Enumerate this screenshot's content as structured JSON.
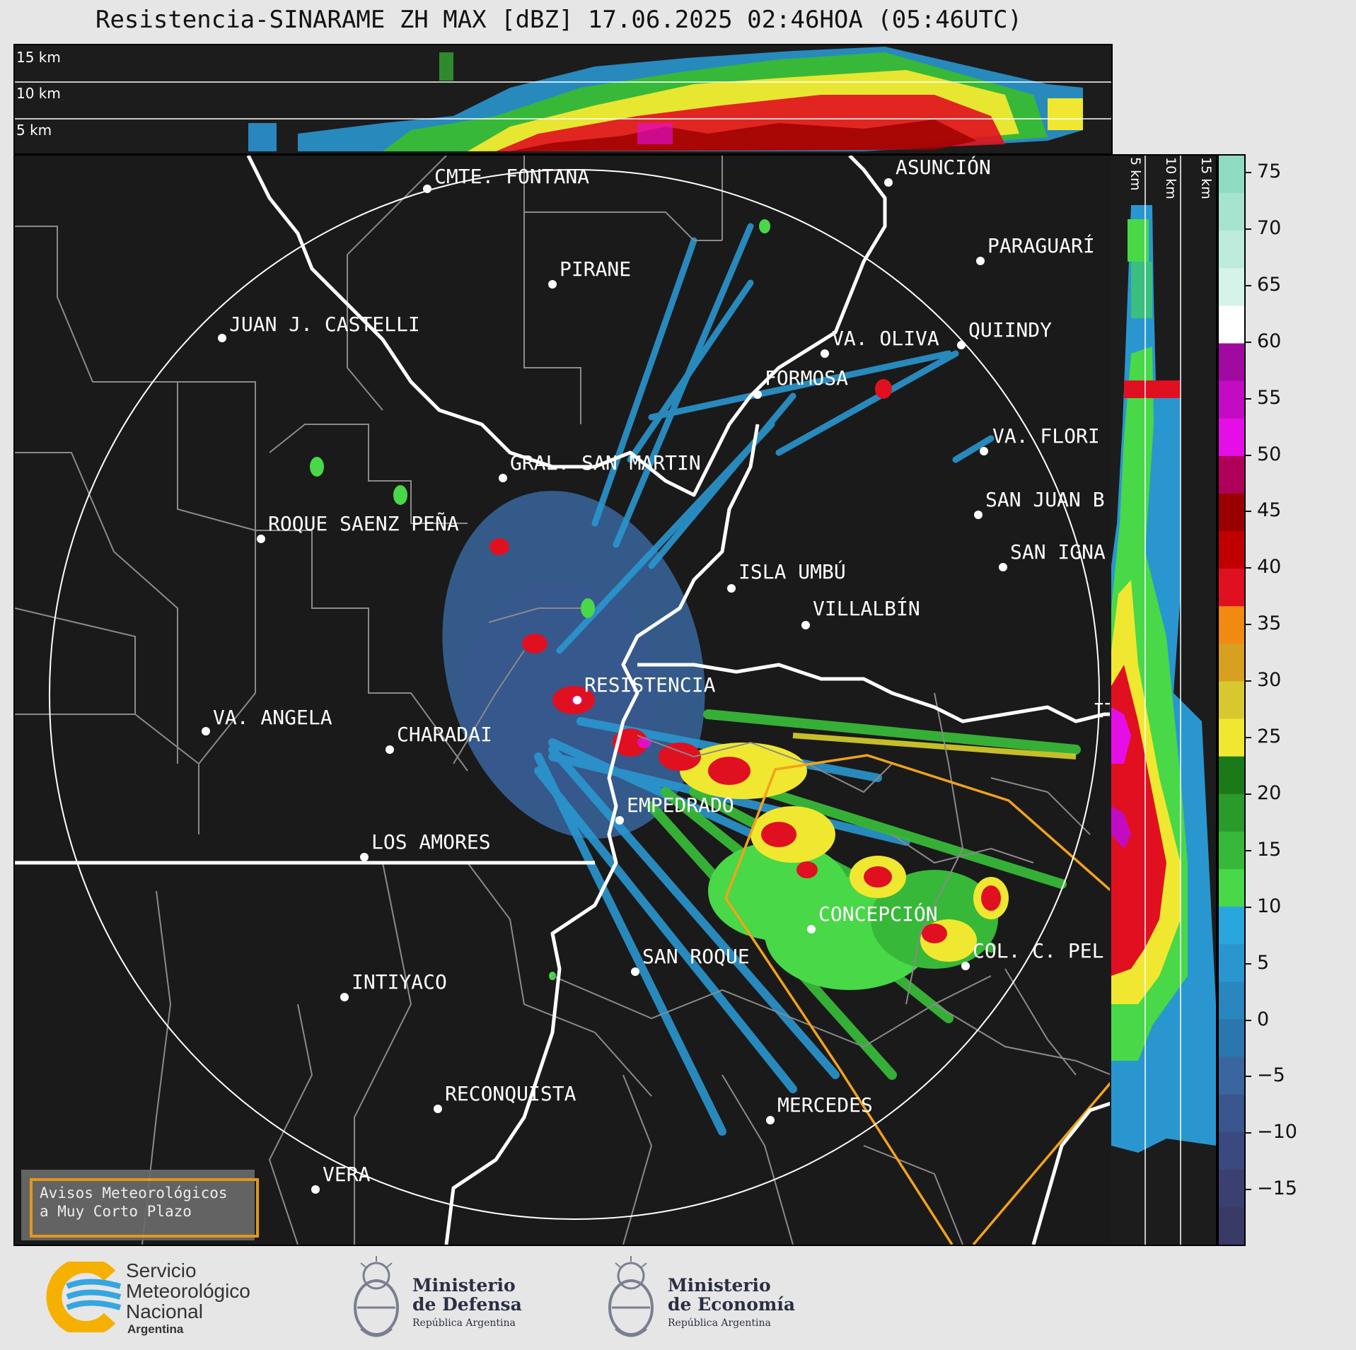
{
  "title": "Resistencia-SINARAME ZH MAX [dBZ] 17.06.2025 02:46HOA (05:46UTC)",
  "top_section": {
    "labels": [
      "15 km",
      "10 km",
      "5 km"
    ]
  },
  "right_section": {
    "labels": [
      "5 km",
      "10 km",
      "15 km"
    ]
  },
  "colorbar": {
    "ticks": [
      "75",
      "70",
      "65",
      "60",
      "55",
      "50",
      "45",
      "40",
      "35",
      "30",
      "25",
      "20",
      "15",
      "10",
      "5",
      "0",
      "−5",
      "−10",
      "−15"
    ],
    "colors": [
      "#8fdcc2",
      "#a6e4cf",
      "#bdecdc",
      "#d5f3e9",
      "#ffffff",
      "#a10aa1",
      "#c40bc4",
      "#e60ee6",
      "#b0005a",
      "#9b0000",
      "#c00000",
      "#e01020",
      "#f08a10",
      "#d8a020",
      "#d8c830",
      "#f0e830",
      "#1a7a1a",
      "#2a9a2a",
      "#38b838",
      "#48d848",
      "#2aa6df",
      "#2a96cf",
      "#2a86bf",
      "#2a76af",
      "#3a669f",
      "#3a568f",
      "#3a4a80",
      "#3a4070",
      "#3a3a66"
    ]
  },
  "places": [
    {
      "name": "CMTE. FONTANA"
    },
    {
      "name": "ASUNCIÓN"
    },
    {
      "name": "PIRANE"
    },
    {
      "name": "PARAGUARÍ"
    },
    {
      "name": "JUAN J. CASTELLI"
    },
    {
      "name": "QUIINDY"
    },
    {
      "name": "VA. OLIVA"
    },
    {
      "name": "FORMOSA"
    },
    {
      "name": "VA. FLORI"
    },
    {
      "name": "GRAL. SAN MARTIN"
    },
    {
      "name": "SAN JUAN B"
    },
    {
      "name": "ROQUE SAENZ PEÑA"
    },
    {
      "name": "SAN IGNA"
    },
    {
      "name": "ISLA UMBÚ"
    },
    {
      "name": "VILLALBÍN"
    },
    {
      "name": "RESISTENCIA"
    },
    {
      "name": "VA. ANGELA"
    },
    {
      "name": "CHARADAI"
    },
    {
      "name": "IT"
    },
    {
      "name": "EMPEDRADO"
    },
    {
      "name": "LOS AMORES"
    },
    {
      "name": "CONCEPCIÓN"
    },
    {
      "name": "COL. C. PEL"
    },
    {
      "name": "SAN ROQUE"
    },
    {
      "name": "INTIYACO"
    },
    {
      "name": "RECONQUISTA"
    },
    {
      "name": "MERCEDES"
    },
    {
      "name": "VERA"
    }
  ],
  "warning_box": {
    "line1": "Avisos Meteorológicos",
    "line2": "a Muy Corto Plazo"
  },
  "footer": {
    "smn_line1": "Servicio",
    "smn_line2": "Meteorológico",
    "smn_line3": "Nacional",
    "smn_line4": "Argentina",
    "defensa_line1": "Ministerio",
    "defensa_line2": "de Defensa",
    "defensa_line3": "República Argentina",
    "economia_line1": "Ministerio",
    "economia_line2": "de Economía",
    "economia_line3": "República Argentina"
  }
}
